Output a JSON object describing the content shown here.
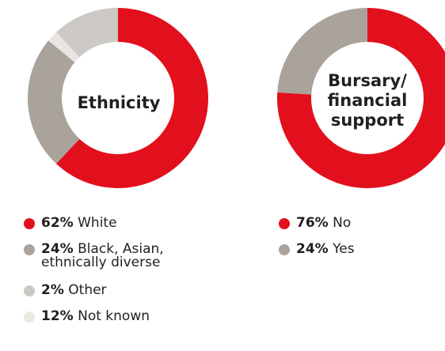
{
  "chart_data": [
    {
      "type": "pie",
      "title": "Ethnicity",
      "categories": [
        "White",
        "Black, Asian, ethnically diverse",
        "Other",
        "Not known"
      ],
      "values": [
        62,
        24,
        2,
        12
      ],
      "value_labels": [
        "62%",
        "24%",
        "2%",
        "12%"
      ],
      "colors": [
        "#e2101c",
        "#aaa39c",
        "#e9e6e2",
        "#ccc8c4"
      ],
      "legend_swatch_colors": [
        "#e2101c",
        "#aaa39c",
        "#ccc8c4",
        "#ece9e4"
      ],
      "legend": [
        "White",
        "Black, Asian,\nethnically diverse",
        "Other",
        "Not known"
      ],
      "legend_placement": "below"
    },
    {
      "type": "pie",
      "title": "Bursary/\nfinancial\nsupport",
      "categories": [
        "No",
        "Yes"
      ],
      "values": [
        76,
        24
      ],
      "value_labels": [
        "76%",
        "24%"
      ],
      "colors": [
        "#e2101c",
        "#aaa39c"
      ],
      "legend_swatch_colors": [
        "#e2101c",
        "#aaa39c"
      ],
      "legend": [
        "No",
        "Yes"
      ],
      "legend_placement": "below"
    }
  ]
}
